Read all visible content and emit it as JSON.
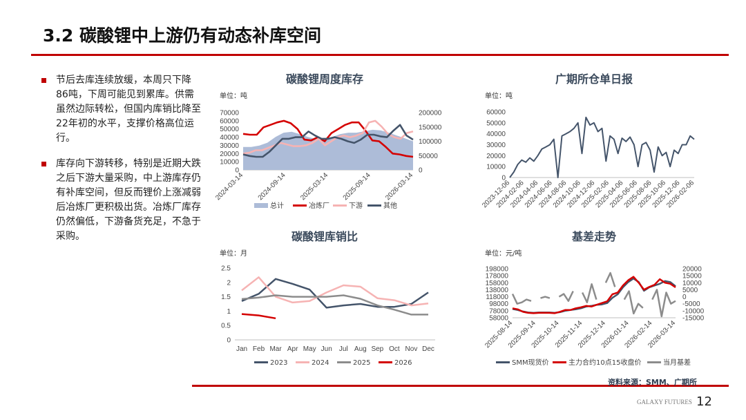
{
  "title": "3.2 碳酸锂中上游仍有动态补库空间",
  "bullets": [
    "节后去库连续放缓，本周只下降86吨，下周可能见到累库。供需虽然边际转松，但国内库销比降至22年初的水平，支撑价格高位运行。",
    "库存向下游转移，特别是近期大跌之后下游大量采购，中上游库存仍有补库空间，但反而锂价上涨减弱后冶炼厂更积极出货。冶炼厂库存仍然偏低，下游备货充足，不急于采购。"
  ],
  "source": "资料来源：SMM、广期所",
  "footer": "GALAXY FUTURES",
  "page_number": "12",
  "colors": {
    "accent": "#c00000",
    "dark": "#44546a",
    "pink": "#f4b6b6",
    "area": "#adbcd8",
    "gray": "#8c8c8c"
  },
  "chart_data": [
    {
      "id": "weekly",
      "type": "line",
      "title": "碳酸锂周度库存",
      "unit": "单位：吨",
      "yticks_left": [
        "0",
        "10000",
        "20000",
        "30000",
        "40000",
        "50000",
        "60000",
        "70000"
      ],
      "ylim": [
        0,
        70000
      ],
      "yticks_right": [
        "0",
        "50000",
        "100000",
        "150000",
        "200000"
      ],
      "ylim_right": [
        0,
        200000
      ],
      "xticks": [
        "2024-03-14",
        "2024-09-14",
        "2025-03-14",
        "2025-09-14",
        "2026-03-14"
      ],
      "series": [
        {
          "name": "总计",
          "kind": "area",
          "axis": "right",
          "color": "#adbcd8",
          "values": [
            80000,
            80000,
            85000,
            95000,
            115000,
            130000,
            133000,
            125000,
            115000,
            108000,
            108000,
            115000,
            125000,
            130000,
            130000,
            135000,
            140000,
            138000,
            130000,
            120000,
            110000,
            100000
          ]
        },
        {
          "name": "冶炼厂",
          "axis": "left",
          "color": "#d40000",
          "values": [
            44000,
            43000,
            43000,
            52000,
            55000,
            58000,
            60000,
            57000,
            50000,
            37000,
            36000,
            40000,
            35000,
            45000,
            50000,
            55000,
            58000,
            58000,
            48000,
            36000,
            35000,
            28000,
            20000,
            19000,
            17000,
            16000
          ]
        },
        {
          "name": "下游",
          "axis": "left",
          "color": "#f6b3b3",
          "values": [
            20000,
            21000,
            24000,
            24000,
            27000,
            30000,
            33000,
            31000,
            29000,
            29000,
            30000,
            33000,
            38000,
            30000,
            35000,
            40000,
            42000,
            40000,
            42000,
            45000,
            58000,
            60000,
            53000,
            44000,
            40000,
            38000,
            45000,
            47000
          ]
        },
        {
          "name": "其他",
          "axis": "left",
          "color": "#44546a",
          "values": [
            19000,
            17000,
            16000,
            16000,
            22000,
            30000,
            38000,
            38000,
            40000,
            40000,
            47000,
            42000,
            38000,
            38000,
            40000,
            38000,
            35000,
            33000,
            37000,
            43000,
            43000,
            41000,
            40000,
            48000,
            55000,
            42000,
            37000
          ]
        }
      ]
    },
    {
      "id": "warrant",
      "type": "line",
      "title": "广期所仓单日报",
      "unit": "单位：吨",
      "yticks_left": [
        "0",
        "10000",
        "20000",
        "30000",
        "40000",
        "50000",
        "60000"
      ],
      "ylim": [
        0,
        60000
      ],
      "xticks": [
        "2023-12-06",
        "2024-02-06",
        "2024-04-06",
        "2024-06-06",
        "2024-08-06",
        "2024-10-06",
        "2024-12-06",
        "2025-02-06",
        "2025-04-06",
        "2025-06-06",
        "2025-08-06",
        "2025-10-06",
        "2025-12-06",
        "2026-02-06"
      ],
      "series": [
        {
          "name": "仓单",
          "axis": "left",
          "color": "#44546a",
          "values": [
            0,
            5000,
            12000,
            16000,
            14000,
            18000,
            15000,
            20000,
            26000,
            28000,
            30000,
            35000,
            0,
            38000,
            40000,
            42000,
            45000,
            50000,
            22000,
            55000,
            48000,
            50000,
            42000,
            45000,
            15000,
            38000,
            35000,
            22000,
            36000,
            33000,
            37000,
            30000,
            10000,
            30000,
            32000,
            25000,
            5000,
            28000,
            20000,
            23000,
            10000,
            25000,
            22000,
            30000,
            30000,
            38000,
            35000
          ]
        }
      ]
    },
    {
      "id": "ratio",
      "type": "line",
      "title": "碳酸锂库销比",
      "unit": "单位：月",
      "yticks_left": [
        "0",
        "0.5",
        "1",
        "1.5",
        "2",
        "2.5"
      ],
      "ylim": [
        0,
        2.5
      ],
      "xticks": [
        "Jan",
        "Feb",
        "Mar",
        "Apr",
        "May",
        "Jun",
        "Jul",
        "Aug",
        "Sep",
        "Oct",
        "Nov",
        "Dec"
      ],
      "series": [
        {
          "name": "2023",
          "axis": "left",
          "color": "#44546a",
          "values": [
            1.35,
            1.6,
            2.12,
            1.95,
            1.75,
            1.12,
            1.2,
            1.25,
            1.15,
            1.15,
            1.25,
            1.65
          ]
        },
        {
          "name": "2024",
          "axis": "left",
          "color": "#f6b3b3",
          "values": [
            1.72,
            2.18,
            1.5,
            1.3,
            1.35,
            1.65,
            1.9,
            1.85,
            1.45,
            1.38,
            1.2,
            1.27
          ]
        },
        {
          "name": "2025",
          "axis": "left",
          "color": "#8c8c8c",
          "values": [
            1.42,
            1.47,
            1.55,
            1.5,
            1.5,
            1.5,
            1.55,
            1.43,
            1.2,
            1.05,
            0.88,
            0.88
          ]
        },
        {
          "name": "2026",
          "axis": "left",
          "color": "#d40000",
          "values": [
            0.9,
            0.85,
            0.75
          ]
        }
      ]
    },
    {
      "id": "basis",
      "type": "line",
      "title": "基差走势",
      "unit": "单位：元/吨",
      "yticks_left": [
        "58000",
        "78000",
        "98000",
        "118000",
        "138000",
        "158000",
        "178000",
        "198000"
      ],
      "ylim": [
        58000,
        198000
      ],
      "yticks_right": [
        "-15000",
        "-10000",
        "-5000",
        "0",
        "5000",
        "10000",
        "15000",
        "20000"
      ],
      "ylim_right": [
        -15000,
        20000
      ],
      "xticks": [
        "2025-08-14",
        "2025-09-14",
        "2025-10-14",
        "2025-11-14",
        "2025-12-14",
        "2026-01-14",
        "2026-02-14",
        "2026-03-14"
      ],
      "series": [
        {
          "name": "SMM现货价",
          "axis": "left",
          "color": "#44546a",
          "values": [
            83000,
            80000,
            76000,
            73000,
            72000,
            73000,
            73000,
            73000,
            72000,
            74000,
            78000,
            80000,
            82000,
            85000,
            90000,
            92000,
            95000,
            96000,
            100000,
            115000,
            125000,
            145000,
            160000,
            170000,
            160000,
            135000,
            145000,
            150000,
            155000,
            163000,
            160000,
            148000
          ]
        },
        {
          "name": "主力合约10点15收盘价",
          "axis": "left",
          "color": "#d40000",
          "values": [
            85000,
            82000,
            75000,
            72000,
            71000,
            72000,
            72000,
            72000,
            71000,
            75000,
            80000,
            80000,
            85000,
            88000,
            92000,
            90000,
            95000,
            100000,
            105000,
            125000,
            130000,
            150000,
            165000,
            175000,
            158000,
            138000,
            146000,
            152000,
            168000,
            158000,
            155000,
            145000
          ]
        },
        {
          "name": "当月基差",
          "axis": "right",
          "color": "#8c8c8c",
          "values": [
            2000,
            -5000,
            -4000,
            -2000,
            -3000,
            null,
            -1000,
            0,
            -1000,
            null,
            0,
            2000,
            -3000,
            4000,
            null,
            3000,
            -4000,
            9000,
            -2000,
            null,
            10000,
            17000,
            7000,
            null,
            -2000,
            4000,
            -12000,
            -5000,
            -8000,
            null,
            -2000,
            5000,
            -14000,
            3000,
            -5000,
            -3000
          ]
        }
      ]
    }
  ]
}
